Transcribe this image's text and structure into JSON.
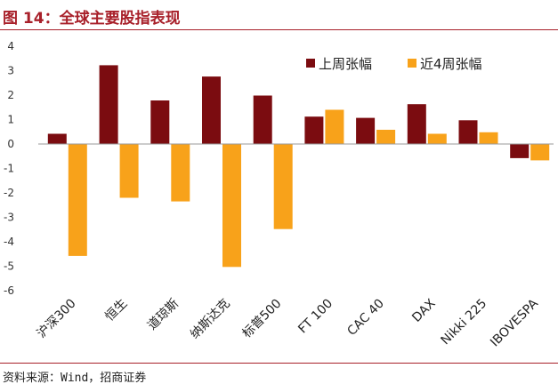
{
  "header": {
    "title": "图 14：全球主要股指表现"
  },
  "footer": {
    "source": "资料来源：Wind，招商证券"
  },
  "colors": {
    "series1": "#7b0c10",
    "series2": "#f8a21a",
    "accent": "#a8202a",
    "zero_line": "#9a9a9a"
  },
  "chart_data": {
    "type": "bar",
    "title": "图 14：全球主要股指表现",
    "xlabel": "",
    "ylabel": "",
    "ylim": [
      -6,
      4
    ],
    "yticks": [
      4,
      3,
      2,
      1,
      0,
      -1,
      -2,
      -3,
      -4,
      -5,
      -6
    ],
    "grid": false,
    "legend_position": "top-right",
    "categories": [
      "沪深300",
      "恒生",
      "道琼斯",
      "纳斯达克",
      "标普500",
      "FT 100",
      "CAC 40",
      "DAX",
      "Nikki 225",
      "IBOVESPA"
    ],
    "series": [
      {
        "name": "上周张幅",
        "values": [
          0.42,
          3.22,
          1.78,
          2.76,
          1.98,
          1.12,
          1.07,
          1.63,
          0.97,
          -0.58
        ]
      },
      {
        "name": "近4周张幅",
        "values": [
          -4.58,
          -2.2,
          -2.35,
          -5.03,
          -3.48,
          1.4,
          0.58,
          0.42,
          0.48,
          -0.67
        ]
      }
    ]
  }
}
